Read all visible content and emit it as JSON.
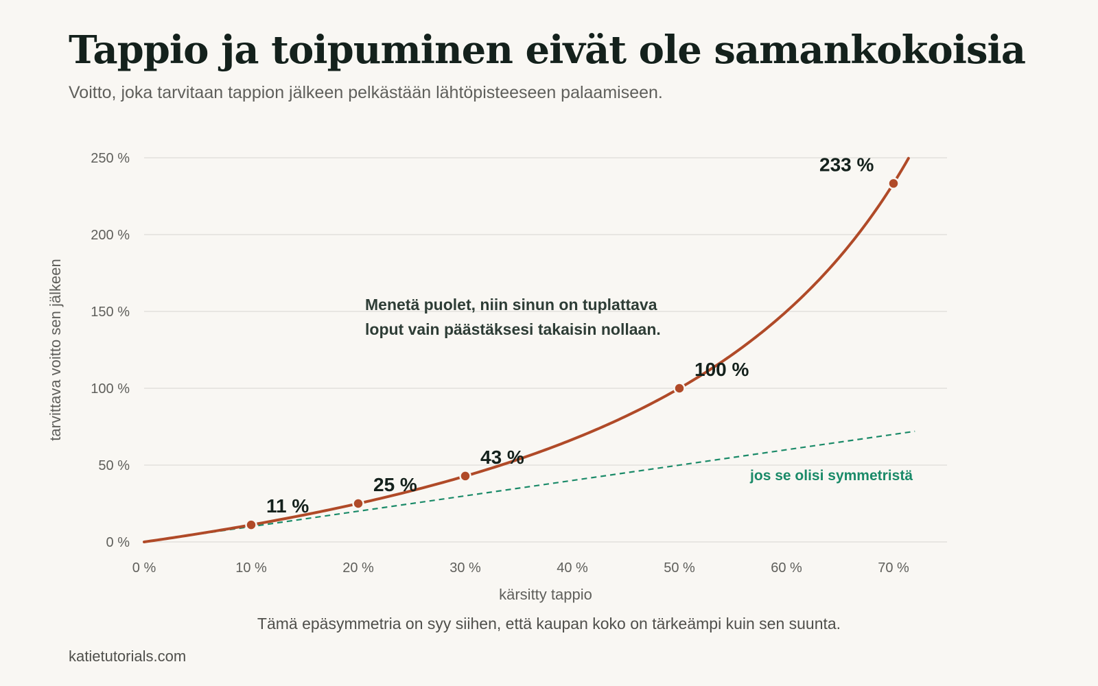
{
  "header": {
    "title": "Tappio ja toipuminen eivät ole samankokoisia",
    "subtitle": "Voitto, joka tarvitaan tappion jälkeen pelkästään lähtöpisteeseen palaamiseen."
  },
  "footer": {
    "note": "Tämä epäsymmetria on syy siihen, että kaupan koko on tärkeämpi kuin sen suunta.",
    "source": "katietutorials.com"
  },
  "colors": {
    "curve": "#b04a28",
    "reference": "#1a8a68",
    "grid": "#e3e1dc",
    "text": "#14211c",
    "muted": "#5f5f5b"
  },
  "chart_data": {
    "type": "line",
    "xlabel": "kärsitty tappio",
    "ylabel": "tarvittava voitto sen jälkeen",
    "xlim": [
      0,
      72
    ],
    "ylim": [
      0,
      250
    ],
    "x_ticks": [
      0,
      10,
      20,
      30,
      40,
      50,
      60,
      70
    ],
    "x_tick_labels": [
      "0 %",
      "10 %",
      "20 %",
      "30 %",
      "40 %",
      "50 %",
      "60 %",
      "70 %"
    ],
    "y_ticks": [
      0,
      50,
      100,
      150,
      200,
      250
    ],
    "y_tick_labels": [
      "0 %",
      "50 %",
      "100 %",
      "150 %",
      "200 %",
      "250 %"
    ],
    "grid": "horizontal",
    "series": [
      {
        "role": "curve",
        "x": [
          0,
          5,
          10,
          15,
          20,
          25,
          30,
          35,
          40,
          45,
          50,
          55,
          60,
          65,
          70,
          71.4
        ],
        "y": [
          0,
          5.3,
          11.1,
          17.6,
          25,
          33.3,
          42.9,
          53.8,
          66.7,
          81.8,
          100,
          122.2,
          150,
          185.7,
          233.3,
          250
        ]
      },
      {
        "role": "reference",
        "name": "jos se olisi symmetristä",
        "style": "dashed",
        "x": [
          0,
          72
        ],
        "y": [
          0,
          72
        ]
      }
    ],
    "points": [
      {
        "x": 10,
        "y": 11.1,
        "label": "11 %"
      },
      {
        "x": 20,
        "y": 25,
        "label": "25 %"
      },
      {
        "x": 30,
        "y": 42.9,
        "label": "43 %"
      },
      {
        "x": 50,
        "y": 100,
        "label": "100 %"
      },
      {
        "x": 70,
        "y": 233.3,
        "label": "233 %"
      }
    ],
    "annotation": [
      "Menetä puolet, niin sinun on tuplattava",
      "loput vain päästäksesi takaisin nollaan."
    ]
  }
}
